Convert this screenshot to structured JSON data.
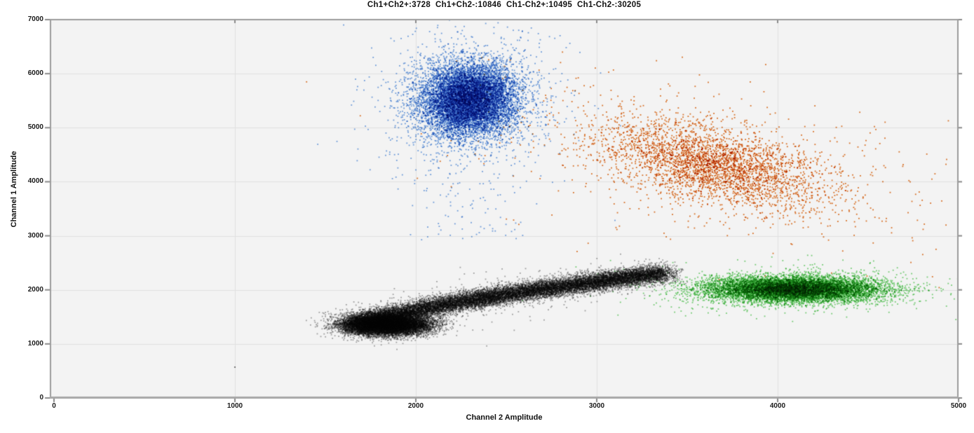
{
  "chart_data": {
    "type": "scatter",
    "title": "Ch1+Ch2+:3728  Ch1+Ch2-:10846  Ch1-Ch2+:10495  Ch1-Ch2-:30205",
    "xlabel": "Channel 2 Amplitude",
    "ylabel": "Channel 1 Amplitude",
    "xlim": [
      0,
      5000
    ],
    "ylim": [
      0,
      7000
    ],
    "x_ticks": [
      0,
      1000,
      2000,
      3000,
      4000,
      5000
    ],
    "y_ticks": [
      0,
      1000,
      2000,
      3000,
      4000,
      5000,
      6000,
      7000
    ],
    "grid": true,
    "legend": "none",
    "colors": {
      "plot_background": "#f3f3f3",
      "page_background": "#ffffff",
      "grid_line": "#e1e1e1",
      "border": "#9c9c9c",
      "border_bottom": "#a6a6a6",
      "tick_mark": "#8a8a8a",
      "text": "#111111"
    },
    "clusters": [
      {
        "label": "Ch1+Ch2+",
        "count": 3728,
        "color": "#e06610",
        "alpha": 0.9,
        "shape": "gauss",
        "center": [
          3640,
          4330
        ],
        "sigma": [
          320,
          400
        ],
        "rho": -0.5,
        "halo": {
          "frac": 0.16,
          "scale": 2.1
        }
      },
      {
        "label": "Ch1+Ch2-",
        "count": 10846,
        "color": "#1465d2",
        "alpha": 0.6,
        "shape": "gauss",
        "center": [
          2295,
          5520
        ],
        "sigma": [
          130,
          330
        ],
        "rho": 0.05,
        "halo": {
          "frac": 0.1,
          "scale": 1.8
        },
        "tail": {
          "frac": 0.012,
          "dy_range": [
            -2600,
            -800
          ],
          "sx_scale": 1.4
        }
      },
      {
        "label": "Ch1-Ch2+",
        "count": 10495,
        "color": "#0eb40e",
        "alpha": 0.55,
        "shape": "gauss",
        "center": [
          4080,
          2010
        ],
        "sigma": [
          235,
          115
        ],
        "rho": 0.0,
        "halo": {
          "frac": 0.07,
          "scale": 1.9
        }
      },
      {
        "label": "Ch1-Ch2-",
        "count": 30205,
        "color": "#4f4f4f",
        "alpha": 0.5,
        "shape": "banana",
        "blob": {
          "weight": 0.42,
          "center": [
            1840,
            1360
          ],
          "sigma": [
            120,
            100
          ]
        },
        "band": {
          "x0": 1660,
          "x1": 3330,
          "y0": 1295,
          "rise": 1000,
          "exp": 0.7,
          "sigma_x": 55,
          "sigma_y": 80,
          "t_max": 1.03,
          "wide_frac": 0.02,
          "wide_scale": 3.0
        },
        "outliers": [
          [
            1000,
            570
          ]
        ]
      }
    ]
  }
}
